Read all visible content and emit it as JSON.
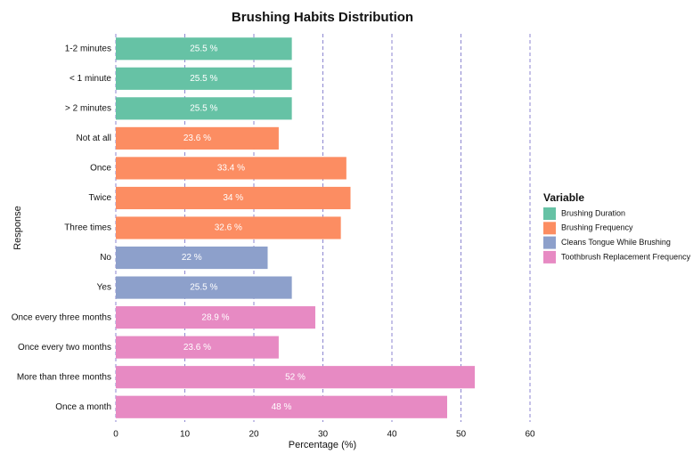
{
  "chart_data": {
    "type": "bar",
    "orientation": "horizontal",
    "title": "Brushing Habits Distribution",
    "x_label": "Percentage (%)",
    "y_label": "Response",
    "legend_title": "Variable",
    "legend_position": "right",
    "categories": [
      "1-2 minutes",
      "< 1 minute",
      "> 2 minutes",
      "Not at all",
      "Once",
      "Twice",
      "Three times",
      "No",
      "Yes",
      "Once every three months",
      "Once every two months",
      "More than three months",
      "Once a month"
    ],
    "series": [
      {
        "name": "Brushing Duration",
        "color": "#66c2a5",
        "values": [
          25.5,
          25.5,
          25.5,
          null,
          null,
          null,
          null,
          null,
          null,
          null,
          null,
          null,
          null
        ],
        "value_labels": [
          "25.5 %",
          "25.5 %",
          "25.5 %",
          null,
          null,
          null,
          null,
          null,
          null,
          null,
          null,
          null,
          null
        ]
      },
      {
        "name": "Brushing Frequency",
        "color": "#fc8d62",
        "values": [
          null,
          null,
          null,
          23.6,
          33.4,
          34,
          32.6,
          null,
          null,
          null,
          null,
          null,
          null
        ],
        "value_labels": [
          null,
          null,
          null,
          "23.6 %",
          "33.4 %",
          "34 %",
          "32.6 %",
          null,
          null,
          null,
          null,
          null,
          null
        ]
      },
      {
        "name": "Cleans Tongue While Brushing",
        "color": "#8da0cb",
        "values": [
          null,
          null,
          null,
          null,
          null,
          null,
          null,
          22,
          25.5,
          null,
          null,
          null,
          null
        ],
        "value_labels": [
          null,
          null,
          null,
          null,
          null,
          null,
          null,
          "22 %",
          "25.5 %",
          null,
          null,
          null,
          null
        ]
      },
      {
        "name": "Toothbrush Replacement Frequency",
        "color": "#e78ac3",
        "values": [
          null,
          null,
          null,
          null,
          null,
          null,
          null,
          null,
          null,
          28.9,
          23.6,
          52,
          48
        ],
        "value_labels": [
          null,
          null,
          null,
          null,
          null,
          null,
          null,
          null,
          null,
          "28.9 %",
          "23.6 %",
          "52 %",
          "48 %"
        ]
      }
    ],
    "xlim": [
      0,
      60
    ],
    "xticks": [
      0,
      10,
      20,
      30,
      40,
      50,
      60
    ],
    "grid": true
  }
}
